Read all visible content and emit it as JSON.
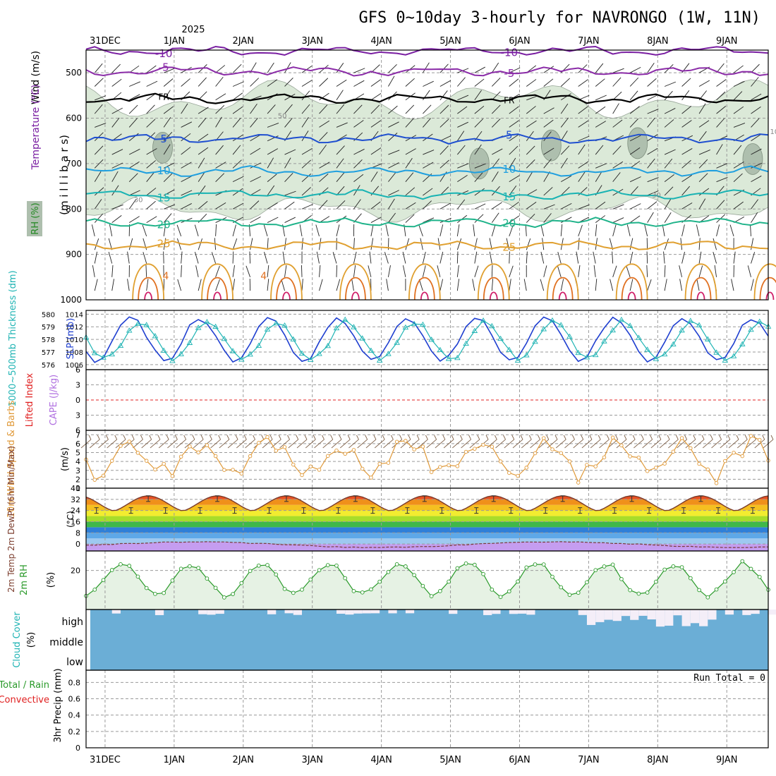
{
  "colors": {
    "frame": "#000000",
    "grid": "#9a9a9a",
    "rh_fill": "#dbe9d8",
    "rh_fill2": "#aebfae",
    "t_neg10": "#7a1fa2",
    "t_neg5": "#8b2ca8",
    "t_fr": "#000000",
    "t_5": "#1f4fd0",
    "t_10": "#1f9fdf",
    "t_15": "#19b3b3",
    "t_20": "#1fb38a",
    "t_25": "#e0a030",
    "t_30": "#e07020",
    "t_35": "#d0206a",
    "slp": "#1f3fd0",
    "thick": "#20b4b4",
    "li_zero": "#e02020",
    "wind_speed": "#e09a3a",
    "wind_barb": "#7a5a40",
    "rh2m": "#2a9a2a",
    "rh2m_fill": "#e6f2e4",
    "cloud_fill": "#6baed6",
    "cloud_gap": "#f4eef8",
    "dew_fill": "#c59df0",
    "dew_line": "#7a3b3b",
    "temp_line": "#7a3b2b"
  },
  "chart_data": [
    {
      "title": "GFS 0~10day 3-hourly for NAVRONGO (1W, 11N)",
      "top_labels": {
        "year": "2025"
      },
      "days": [
        "31DEC",
        "1JAN",
        "2JAN",
        "3JAN",
        "4JAN",
        "5JAN",
        "6JAN",
        "7JAN",
        "8JAN",
        "9JAN"
      ],
      "time_range_h": [
        -6.6,
        230.4
      ]
    },
    {
      "panel": "upper_air",
      "type": "contour",
      "ylabel": "(m i l l i b a r s)",
      "legend_labels": {
        "wind": "Wind (m/s)",
        "temperature": "Temperature (°C)",
        "rh": "RH (%)"
      },
      "yaxis_ticks": [
        500,
        600,
        700,
        800,
        900,
        1000
      ],
      "ylim": [
        450,
        1000
      ],
      "isotherms": [
        {
          "name": "-10",
          "p": 452
        },
        {
          "name": "-5",
          "p": 497
        },
        {
          "name": "FR",
          "p": 557
        },
        {
          "name": "5",
          "p": 645
        },
        {
          "name": "10",
          "p": 717
        },
        {
          "name": "15",
          "p": 768
        },
        {
          "name": "20",
          "p": 830
        },
        {
          "name": "25",
          "p": 880
        }
      ],
      "contour_labels": {
        "rh": [
          "50",
          "30",
          "30",
          "10"
        ],
        "warm": [
          "4",
          "4"
        ]
      },
      "rh_bands_p": [
        [
          560,
          800
        ]
      ]
    },
    {
      "panel": "slp_thickness",
      "type": "line",
      "ylabel_left": "1000~500mb Thickness (dm)",
      "ylabel_right": "SLP (mb)",
      "thickness_ticks": [
        576,
        577,
        578,
        579,
        580
      ],
      "slp_ticks": [
        1006,
        1008,
        1010,
        1012,
        1014
      ],
      "thickness_ylim": [
        575.6,
        580.3
      ],
      "slp_ylim": [
        1005.2,
        1014.6
      ],
      "slp_range": [
        1006,
        1014
      ],
      "thickness_range": [
        576,
        579.8
      ]
    },
    {
      "panel": "li_cape",
      "type": "line",
      "ylabel_left": "Lifted Index",
      "ylabel_right": "CAPE (J/kg)",
      "yaxis_ticks": [
        -6,
        -3,
        0,
        3,
        6
      ],
      "ylim": [
        -6,
        6
      ],
      "lifted_index": 0
    },
    {
      "panel": "wind10m",
      "type": "line",
      "ylabel": "10m Wind Speed & Barbs",
      "units": "(m/s)",
      "yaxis_ticks": [
        1,
        2,
        3,
        4,
        5,
        6,
        7
      ],
      "ylim": [
        1,
        7.5
      ],
      "speed_range": [
        1.5,
        7.2
      ]
    },
    {
      "panel": "temp2m",
      "type": "area",
      "ylabel": "2m Temp 2m DewPt (6hr Min/Max)",
      "units": "(°C)",
      "yaxis_ticks": [
        0,
        8,
        16,
        24,
        32,
        40
      ],
      "ylim": [
        -5,
        40
      ],
      "max_temp": 34.5,
      "min_temp": 23,
      "dewpoint_range": [
        -3,
        2
      ],
      "color_bands": [
        {
          "from": -5,
          "to": 0,
          "color": "#c59df0"
        },
        {
          "from": 0,
          "to": 4,
          "color": "#9ec9f0"
        },
        {
          "from": 4,
          "to": 8,
          "color": "#5ea8e8"
        },
        {
          "from": 8,
          "to": 12,
          "color": "#2f7fd8"
        },
        {
          "from": 12,
          "to": 16,
          "color": "#3fb84a"
        },
        {
          "from": 16,
          "to": 20,
          "color": "#a8dc2a"
        },
        {
          "from": 20,
          "to": 24,
          "color": "#f2ec30"
        },
        {
          "from": 24,
          "to": 28,
          "color": "#f5c020"
        },
        {
          "from": 28,
          "to": 32,
          "color": "#f0901a"
        },
        {
          "from": 32,
          "to": 36,
          "color": "#ea5020"
        },
        {
          "from": 36,
          "to": 40,
          "color": "#d02020"
        }
      ]
    },
    {
      "panel": "rh2m",
      "type": "line",
      "ylabel": "2m RH",
      "units": "(%)",
      "yaxis_ticks": [
        20
      ],
      "ylim": [
        0,
        30
      ],
      "rh_range": [
        6,
        25
      ]
    },
    {
      "panel": "cloud",
      "type": "bar",
      "ylabel": "Cloud Cover",
      "units": "(%)",
      "levels": [
        "high",
        "middle",
        "low"
      ]
    },
    {
      "panel": "precip",
      "type": "bar",
      "ylabel_a": "Total / Rain",
      "ylabel_b": "Convective",
      "ylabel_c": "3hr Precip (mm)",
      "yaxis_ticks": [
        0,
        0.2,
        0.4,
        0.6,
        0.8
      ],
      "ylim": [
        0,
        0.95
      ],
      "run_total_text": "Run Total = 0",
      "values": []
    }
  ]
}
